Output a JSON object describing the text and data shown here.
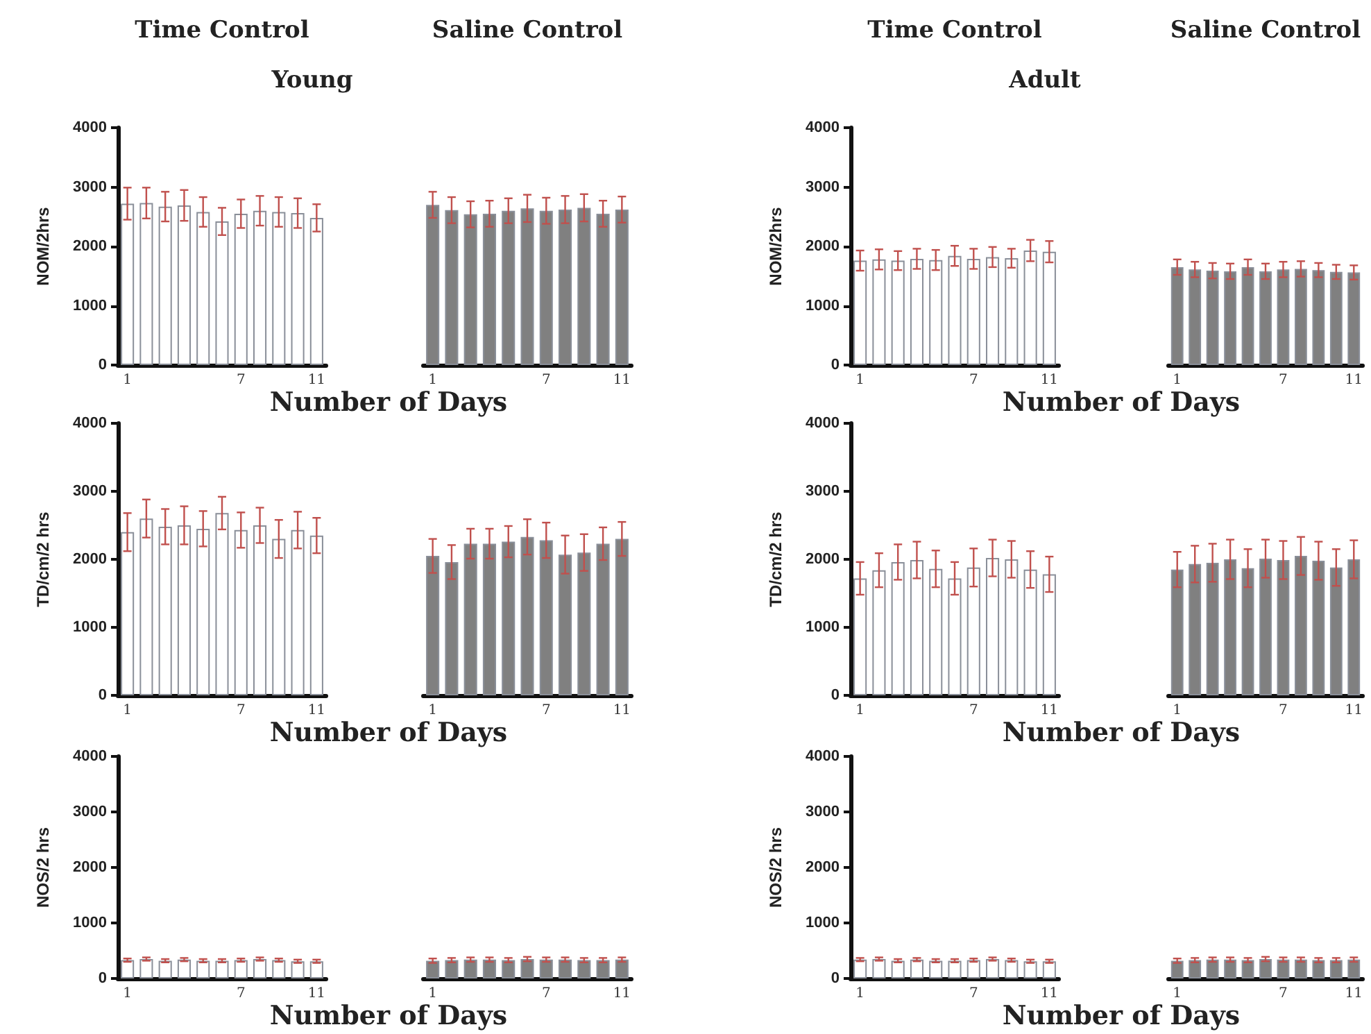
{
  "chart_data": [
    {
      "type": "bar",
      "title": "Time Control",
      "subtitle": "Young",
      "xlabel": "Number of Days",
      "ylabel": "NOM/2hrs",
      "categories": [
        "1",
        null,
        null,
        null,
        null,
        null,
        "7",
        null,
        null,
        null,
        "11"
      ],
      "values": [
        2720,
        2730,
        2670,
        2690,
        2580,
        2420,
        2550,
        2600,
        2580,
        2560,
        2480
      ],
      "errors": [
        270,
        260,
        250,
        260,
        250,
        230,
        240,
        250,
        250,
        250,
        230
      ],
      "color": "#ffffff",
      "ylim": [
        0,
        4000
      ],
      "yticks": [
        0,
        1000,
        2000,
        3000,
        4000
      ]
    },
    {
      "type": "bar",
      "title": "Saline Control",
      "categories": [
        "1",
        null,
        null,
        null,
        null,
        null,
        "7",
        null,
        null,
        null,
        "11"
      ],
      "values": [
        2700,
        2610,
        2540,
        2550,
        2600,
        2640,
        2600,
        2620,
        2650,
        2550,
        2620
      ],
      "errors": [
        220,
        220,
        220,
        220,
        210,
        230,
        220,
        230,
        230,
        220,
        220
      ],
      "color": "#808080",
      "ylim": [
        0,
        4000
      ],
      "yticks": [
        0,
        1000,
        2000,
        3000,
        4000
      ],
      "tick_labels": "x"
    },
    {
      "type": "bar",
      "title": "Time Control",
      "subtitle": "Adult",
      "xlabel": "Number of Days",
      "ylabel": "NOM/2hrs",
      "categories": [
        "1",
        null,
        null,
        null,
        null,
        null,
        "7",
        null,
        null,
        null,
        "11"
      ],
      "values": [
        1760,
        1780,
        1760,
        1790,
        1770,
        1840,
        1790,
        1820,
        1800,
        1930,
        1910
      ],
      "errors": [
        170,
        170,
        160,
        170,
        170,
        170,
        170,
        170,
        160,
        180,
        180
      ],
      "color": "#ffffff",
      "ylim": [
        0,
        4000
      ],
      "yticks": [
        0,
        1000,
        2000,
        3000,
        4000
      ]
    },
    {
      "type": "bar",
      "title": "Saline Control",
      "categories": [
        "1",
        null,
        null,
        null,
        null,
        null,
        "7",
        null,
        null,
        null,
        "11"
      ],
      "values": [
        1650,
        1610,
        1590,
        1580,
        1650,
        1580,
        1610,
        1620,
        1600,
        1570,
        1560
      ],
      "errors": [
        130,
        130,
        130,
        130,
        130,
        130,
        130,
        130,
        120,
        120,
        120
      ],
      "color": "#808080",
      "ylim": [
        0,
        4000
      ],
      "yticks": [
        0,
        1000,
        2000,
        3000,
        4000
      ],
      "tick_labels": "x"
    },
    {
      "type": "bar",
      "xlabel": "Number of Days",
      "ylabel": "TD/cm/2 hrs",
      "categories": [
        "1",
        null,
        null,
        null,
        null,
        null,
        "7",
        null,
        null,
        null,
        "11"
      ],
      "values": [
        2400,
        2600,
        2480,
        2500,
        2450,
        2680,
        2430,
        2500,
        2300,
        2430,
        2350
      ],
      "errors": [
        280,
        280,
        260,
        280,
        260,
        240,
        260,
        260,
        280,
        270,
        260
      ],
      "color": "#ffffff",
      "ylim": [
        0,
        4000
      ],
      "yticks": [
        0,
        1000,
        2000,
        3000,
        4000
      ]
    },
    {
      "type": "bar",
      "categories": [
        "1",
        null,
        null,
        null,
        null,
        null,
        "7",
        null,
        null,
        null,
        "11"
      ],
      "values": [
        2050,
        1960,
        2230,
        2230,
        2260,
        2330,
        2280,
        2070,
        2100,
        2230,
        2300
      ],
      "errors": [
        250,
        250,
        220,
        220,
        230,
        260,
        260,
        280,
        270,
        240,
        250
      ],
      "color": "#808080",
      "ylim": [
        0,
        4000
      ],
      "yticks": [
        0,
        1000,
        2000,
        3000,
        4000
      ],
      "tick_labels": "x"
    },
    {
      "type": "bar",
      "xlabel": "Number of Days",
      "ylabel": "TD/cm/2 hrs",
      "categories": [
        "1",
        null,
        null,
        null,
        null,
        null,
        "7",
        null,
        null,
        null,
        "11"
      ],
      "values": [
        1720,
        1840,
        1960,
        1990,
        1860,
        1720,
        1880,
        2020,
        2000,
        1850,
        1780
      ],
      "errors": [
        240,
        250,
        260,
        270,
        270,
        240,
        280,
        270,
        270,
        270,
        260
      ],
      "color": "#ffffff",
      "ylim": [
        0,
        4000
      ],
      "yticks": [
        0,
        1000,
        2000,
        3000,
        4000
      ]
    },
    {
      "type": "bar",
      "categories": [
        "1",
        null,
        null,
        null,
        null,
        null,
        "7",
        null,
        null,
        null,
        "11"
      ],
      "values": [
        1850,
        1930,
        1950,
        2000,
        1870,
        2010,
        1990,
        2050,
        1980,
        1880,
        2000
      ],
      "errors": [
        260,
        270,
        280,
        290,
        280,
        280,
        280,
        280,
        280,
        270,
        280
      ],
      "color": "#808080",
      "ylim": [
        0,
        4000
      ],
      "yticks": [
        0,
        1000,
        2000,
        3000,
        4000
      ],
      "tick_labels": "x"
    },
    {
      "type": "bar",
      "xlabel": "Number of Days",
      "ylabel": "NOS/2 hrs",
      "categories": [
        "1",
        null,
        null,
        null,
        null,
        null,
        "7",
        null,
        null,
        null,
        "11"
      ],
      "values": [
        330,
        350,
        320,
        340,
        320,
        320,
        330,
        350,
        330,
        310,
        310
      ],
      "errors": [
        30,
        30,
        30,
        30,
        30,
        30,
        30,
        30,
        30,
        30,
        30
      ],
      "color": "#ffffff",
      "ylim": [
        0,
        4000
      ],
      "yticks": [
        0,
        1000,
        2000,
        3000,
        4000
      ]
    },
    {
      "type": "bar",
      "categories": [
        "1",
        null,
        null,
        null,
        null,
        null,
        "7",
        null,
        null,
        null,
        "11"
      ],
      "values": [
        320,
        330,
        340,
        340,
        330,
        350,
        340,
        340,
        330,
        330,
        340
      ],
      "errors": [
        40,
        40,
        40,
        40,
        40,
        40,
        40,
        40,
        40,
        40,
        40
      ],
      "color": "#808080",
      "ylim": [
        0,
        4000
      ],
      "yticks": [
        0,
        1000,
        2000,
        3000,
        4000
      ],
      "tick_labels": "x"
    },
    {
      "type": "bar",
      "xlabel": "Number of Days",
      "ylabel": "NOS/2 hrs",
      "categories": [
        "1",
        null,
        null,
        null,
        null,
        null,
        "7",
        null,
        null,
        null,
        "11"
      ],
      "values": [
        340,
        350,
        320,
        340,
        320,
        320,
        330,
        350,
        330,
        310,
        310
      ],
      "errors": [
        30,
        30,
        30,
        30,
        30,
        30,
        30,
        30,
        30,
        30,
        30
      ],
      "color": "#ffffff",
      "ylim": [
        0,
        4000
      ],
      "yticks": [
        0,
        1000,
        2000,
        3000,
        4000
      ]
    },
    {
      "type": "bar",
      "categories": [
        "1",
        null,
        null,
        null,
        null,
        null,
        "7",
        null,
        null,
        null,
        "11"
      ],
      "values": [
        320,
        330,
        340,
        340,
        330,
        350,
        340,
        340,
        330,
        330,
        340
      ],
      "errors": [
        40,
        40,
        40,
        40,
        40,
        40,
        40,
        40,
        40,
        40,
        40
      ],
      "color": "#808080",
      "ylim": [
        0,
        4000
      ],
      "yticks": [
        0,
        1000,
        2000,
        3000,
        4000
      ],
      "tick_labels": "x"
    }
  ]
}
